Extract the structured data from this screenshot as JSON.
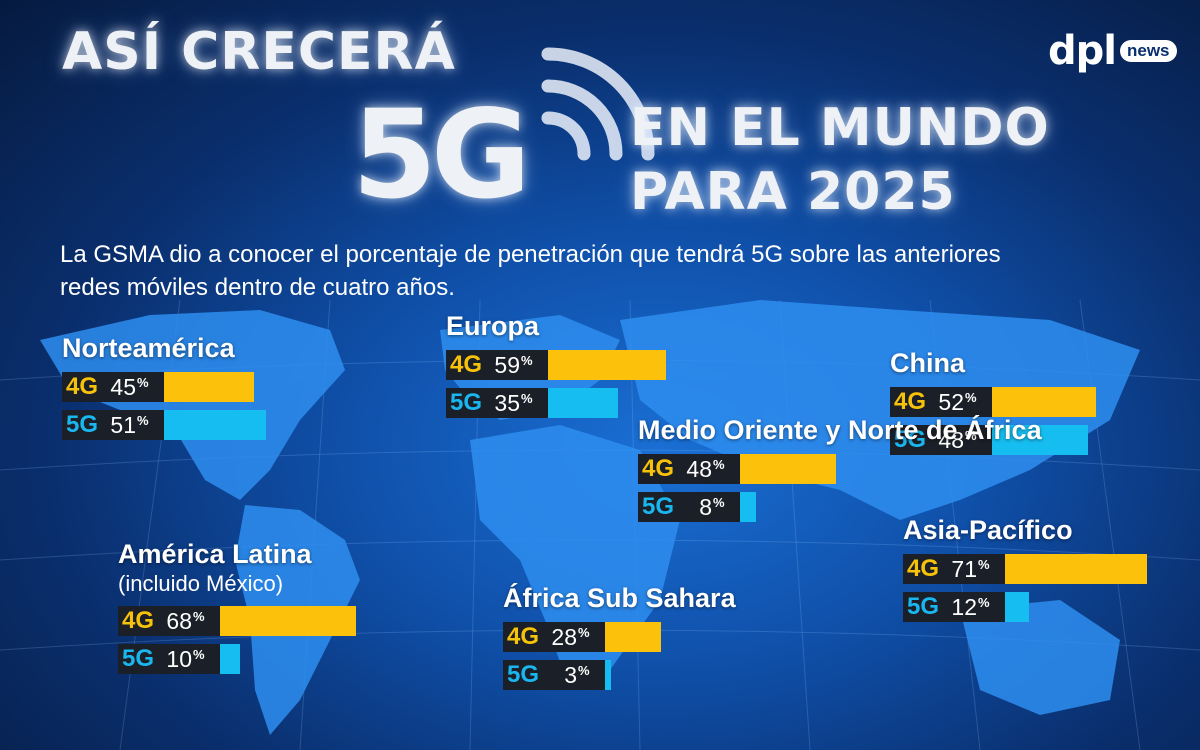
{
  "title": {
    "line1": "ASÍ CRECERÁ",
    "big": "5G",
    "line2": "EN EL MUNDO",
    "line3": "PARA 2025"
  },
  "subtitle": "La GSMA dio a conocer el porcentaje de penetración que tendrá 5G sobre las anteriores redes móviles dentro de cuatro años.",
  "logo": {
    "main": "dpl",
    "badge": "news"
  },
  "colors": {
    "4G": "#fcc20b",
    "5G": "#16bdf0",
    "background": "#0f4fa8"
  },
  "chart_data": {
    "type": "bar",
    "unit": "%",
    "series_labels": [
      "4G",
      "5G"
    ],
    "regions": [
      {
        "name": "Norteamérica",
        "note": "",
        "4G": 45,
        "5G": 51
      },
      {
        "name": "Europa",
        "note": "",
        "4G": 59,
        "5G": 35
      },
      {
        "name": "China",
        "note": "",
        "4G": 52,
        "5G": 48
      },
      {
        "name": "Medio Oriente y Norte de África",
        "note": "",
        "4G": 48,
        "5G": 8
      },
      {
        "name": "América Latina",
        "note": "(incluido México)",
        "4G": 68,
        "5G": 10
      },
      {
        "name": "África Sub Sahara",
        "note": "",
        "4G": 28,
        "5G": 3
      },
      {
        "name": "Asia-Pacífico",
        "note": "",
        "4G": 71,
        "5G": 12
      }
    ]
  }
}
